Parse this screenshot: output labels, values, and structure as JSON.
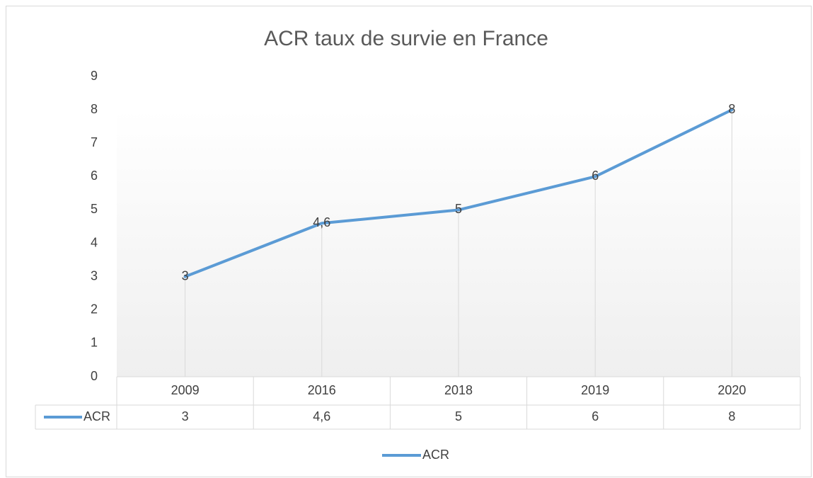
{
  "chart_data": {
    "type": "line",
    "title": "ACR taux de survie en France",
    "categories": [
      "2009",
      "2016",
      "2018",
      "2019",
      "2020"
    ],
    "series": [
      {
        "name": "ACR",
        "color": "#5b9bd5",
        "values": [
          3,
          4.6,
          5,
          6,
          8
        ],
        "value_labels": [
          "3",
          "4,6",
          "5",
          "6",
          "8"
        ]
      }
    ],
    "ylim": [
      0,
      9
    ],
    "yticks": [
      0,
      1,
      2,
      3,
      4,
      5,
      6,
      7,
      8,
      9
    ],
    "drop_lines": true,
    "data_table": true,
    "legend": "bottom"
  }
}
